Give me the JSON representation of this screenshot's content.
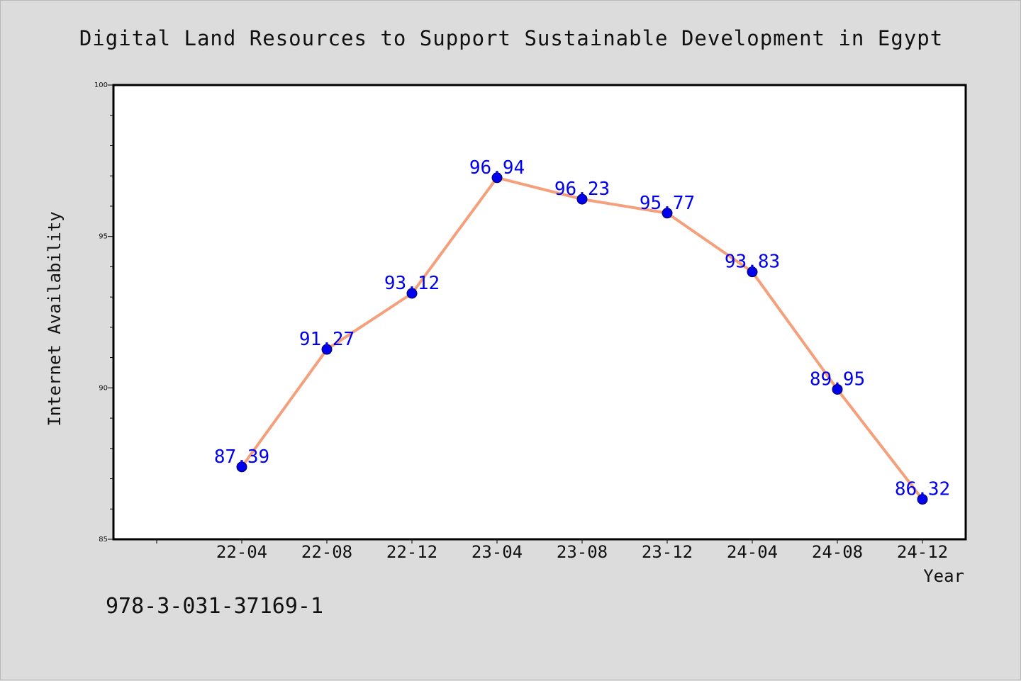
{
  "chart_data": {
    "type": "line",
    "title": "Digital Land Resources to Support Sustainable Development in Egypt",
    "xlabel": "Year",
    "ylabel": "Internet Availability",
    "categories": [
      "22-04",
      "22-08",
      "22-12",
      "23-04",
      "23-08",
      "23-12",
      "24-04",
      "24-08",
      "24-12"
    ],
    "series": [
      {
        "values": [
          87.39,
          91.27,
          93.12,
          96.94,
          96.23,
          95.77,
          93.83,
          89.95,
          86.32
        ]
      }
    ],
    "data_labels": [
      "87.39",
      "91.27",
      "93.12",
      "96.94",
      "96.23",
      "95.77",
      "93.83",
      "89.95",
      "86.32"
    ],
    "ylim": [
      85,
      100
    ],
    "yticks": [
      "85",
      "90",
      "95",
      "100"
    ],
    "grid": false,
    "legend": "none",
    "line_color": "#f4a07c",
    "marker_color": "#0000ee",
    "label_color": "#0000ee"
  },
  "footnote": "978-3-031-37169-1"
}
